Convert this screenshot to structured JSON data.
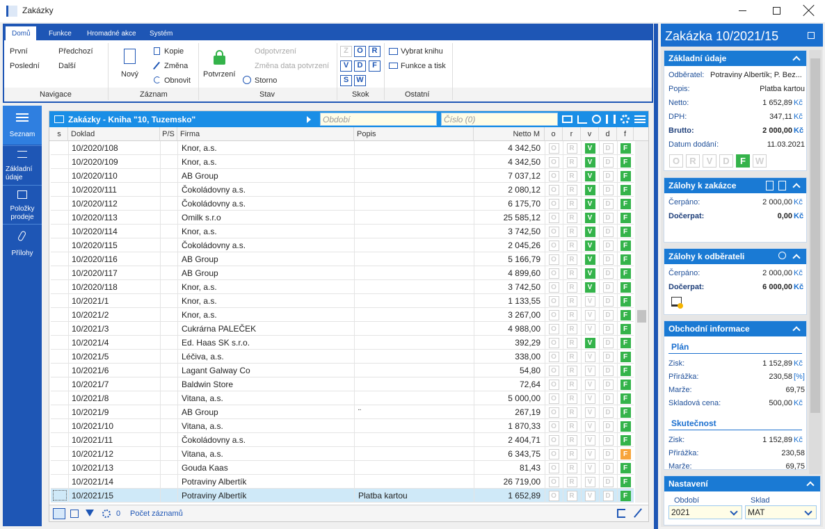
{
  "window": {
    "title": "Zakázky"
  },
  "ribbon": {
    "tabs": [
      "Domů",
      "Funkce",
      "Hromadné akce",
      "Systém"
    ],
    "groups": [
      {
        "label": "Navigace",
        "items": [
          "První",
          "Předchozí",
          "Poslední",
          "Další"
        ]
      },
      {
        "label": "Záznam",
        "items": [
          "Nový",
          "Kopie",
          "Změna",
          "Obnovit"
        ]
      },
      {
        "label": "Stav",
        "items": [
          "Potvrzení",
          "Odpotvrzení",
          "Změna data potvrzení",
          "Storno"
        ]
      },
      {
        "label": "Skok",
        "items": [
          "Z",
          "O",
          "R",
          "V",
          "D",
          "F",
          "S",
          "W"
        ]
      },
      {
        "label": "Ostatní",
        "items": [
          "Vybrat knihu",
          "Funkce a tisk"
        ]
      }
    ]
  },
  "sidebar": {
    "items": [
      "Seznam",
      "Základní údaje",
      "Položky prodeje",
      "Přílohy"
    ]
  },
  "grid": {
    "title": "Zakázky - Kniha \"10, Tuzemsko\"",
    "period_placeholder": "Období",
    "number_placeholder": "Číslo (0)",
    "columns": [
      "s",
      "Doklad",
      "P/S",
      "Firma",
      "Popis",
      "Netto M",
      "o",
      "r",
      "v",
      "d",
      "f"
    ],
    "flag_letters": [
      "O",
      "R",
      "V",
      "D",
      "F"
    ],
    "rows": [
      {
        "doklad": "10/2020/108",
        "firma": "Knor, a.s.",
        "netto": "4 342,50",
        "v": true,
        "f": "green"
      },
      {
        "doklad": "10/2020/109",
        "firma": "Knor, a.s.",
        "netto": "4 342,50",
        "v": true,
        "f": "green"
      },
      {
        "doklad": "10/2020/110",
        "firma": "AB Group",
        "netto": "7 037,12",
        "v": true,
        "f": "green"
      },
      {
        "doklad": "10/2020/111",
        "firma": "Čokoládovny a.s.",
        "netto": "2 080,12",
        "v": true,
        "f": "green"
      },
      {
        "doklad": "10/2020/112",
        "firma": "Čokoládovny a.s.",
        "netto": "6 175,70",
        "v": true,
        "f": "green"
      },
      {
        "doklad": "10/2020/113",
        "firma": "Omilk s.r.o",
        "netto": "25 585,12",
        "v": true,
        "f": "green"
      },
      {
        "doklad": "10/2020/114",
        "firma": "Knor, a.s.",
        "netto": "3 742,50",
        "v": true,
        "f": "green"
      },
      {
        "doklad": "10/2020/115",
        "firma": "Čokoládovny a.s.",
        "netto": "2 045,26",
        "v": true,
        "f": "green"
      },
      {
        "doklad": "10/2020/116",
        "firma": "AB Group",
        "netto": "5 166,79",
        "v": true,
        "f": "green"
      },
      {
        "doklad": "10/2020/117",
        "firma": "AB Group",
        "netto": "4 899,60",
        "v": true,
        "f": "green"
      },
      {
        "doklad": "10/2020/118",
        "firma": "Knor, a.s.",
        "netto": "3 742,50",
        "v": true,
        "f": "green"
      },
      {
        "doklad": "10/2021/1",
        "firma": "Knor, a.s.",
        "netto": "1 133,55",
        "v": false,
        "f": "green"
      },
      {
        "doklad": "10/2021/2",
        "firma": "Knor, a.s.",
        "netto": "3 267,00",
        "v": false,
        "f": "green"
      },
      {
        "doklad": "10/2021/3",
        "firma": "Cukrárna PALEČEK",
        "netto": "4 988,00",
        "v": false,
        "f": "green"
      },
      {
        "doklad": "10/2021/4",
        "firma": "Ed. Haas SK s.r.o.",
        "netto": "392,29",
        "v": true,
        "f": "green"
      },
      {
        "doklad": "10/2021/5",
        "firma": "Léčiva, a.s.",
        "netto": "338,00",
        "v": false,
        "f": "green"
      },
      {
        "doklad": "10/2021/6",
        "firma": "Lagant Galway Co",
        "netto": "54,80",
        "v": false,
        "f": "green"
      },
      {
        "doklad": "10/2021/7",
        "firma": "Baldwin Store",
        "netto": "72,64",
        "v": false,
        "f": "green"
      },
      {
        "doklad": "10/2021/8",
        "firma": "Vitana, a.s.",
        "netto": "5 000,00",
        "v": false,
        "f": "green"
      },
      {
        "doklad": "10/2021/9",
        "firma": "AB Group",
        "popis": "¨",
        "netto": "267,19",
        "v": false,
        "f": "green"
      },
      {
        "doklad": "10/2021/10",
        "firma": "Vitana, a.s.",
        "netto": "1 870,33",
        "v": false,
        "f": "green"
      },
      {
        "doklad": "10/2021/11",
        "firma": "Čokoládovny a.s.",
        "netto": "2 404,71",
        "v": false,
        "f": "green"
      },
      {
        "doklad": "10/2021/12",
        "firma": "Vitana, a.s.",
        "netto": "6 343,75",
        "v": false,
        "f": "orange"
      },
      {
        "doklad": "10/2021/13",
        "firma": "Gouda Kaas",
        "netto": "81,43",
        "v": false,
        "f": "green"
      },
      {
        "doklad": "10/2021/14",
        "firma": "Potraviny Albertík",
        "netto": "26 719,00",
        "v": false,
        "f": "green"
      },
      {
        "doklad": "10/2021/15",
        "firma": "Potraviny Albertík",
        "popis": "Platba kartou",
        "netto": "1 652,89",
        "v": false,
        "f": "green",
        "selected": true
      }
    ],
    "footer": {
      "filter_count": 0,
      "records": "Počet záznamů"
    }
  },
  "detail": {
    "title": "Zakázka 10/2021/15",
    "sections": [
      {
        "title": "Základní údaje",
        "fields": [
          {
            "label": "Odběratel:",
            "value": "Potraviny Albertík; P. Bez..."
          },
          {
            "label": "Popis:",
            "value": "Platba kartou"
          },
          {
            "label": "Netto:",
            "value": "1 652,89",
            "unit": "Kč"
          },
          {
            "label": "DPH:",
            "value": "347,11",
            "unit": "Kč"
          },
          {
            "label": "Brutto:",
            "value": "2 000,00",
            "unit": "Kč",
            "bold": true
          },
          {
            "label": "Datum dodání:",
            "value": "11.03.2021"
          }
        ],
        "status": [
          "O",
          "R",
          "V",
          "D",
          "F",
          "W"
        ],
        "status_active": "F"
      },
      {
        "title": "Zálohy k zakázce",
        "fields": [
          {
            "label": "Čerpáno:",
            "value": "2 000,00",
            "unit": "Kč"
          },
          {
            "label": "Dočerpat:",
            "value": "0,00",
            "unit": "Kč",
            "bold": true
          }
        ]
      },
      {
        "title": "Zálohy k odběrateli",
        "fields": [
          {
            "label": "Čerpáno:",
            "value": "2 000,00",
            "unit": "Kč"
          },
          {
            "label": "Dočerpat:",
            "value": "6 000,00",
            "unit": "Kč",
            "bold": true
          }
        ]
      },
      {
        "title": "Obchodní informace",
        "groups": [
          {
            "title": "Plán",
            "fields": [
              {
                "label": "Zisk:",
                "value": "1 152,89",
                "unit": "Kč"
              },
              {
                "label": "Přirážka:",
                "value": "230,58",
                "unit": "[%]"
              },
              {
                "label": "Marže:",
                "value": "69,75"
              },
              {
                "label": "Skladová cena:",
                "value": "500,00",
                "unit": "Kč"
              }
            ]
          },
          {
            "title": "Skutečnost",
            "fields": [
              {
                "label": "Zisk:",
                "value": "1 152,89",
                "unit": "Kč"
              },
              {
                "label": "Přirážka:",
                "value": "230,58"
              },
              {
                "label": "Marže:",
                "value": "69,75"
              }
            ]
          }
        ]
      },
      {
        "title": "Nastavení",
        "inputs": [
          {
            "label": "Období",
            "value": "2021"
          },
          {
            "label": "Sklad",
            "value": "MAT"
          }
        ]
      }
    ]
  }
}
